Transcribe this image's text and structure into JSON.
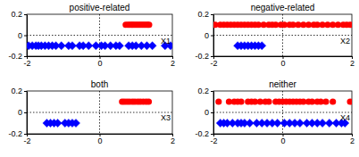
{
  "chart_data": [
    {
      "type": "scatter",
      "title": "positive-related",
      "annotation": "X1",
      "xlim": [
        -2,
        2
      ],
      "ylim": [
        -0.2,
        0.2
      ],
      "xticks": [
        -2,
        0,
        2
      ],
      "yticks": [
        -0.2,
        0,
        0.2
      ],
      "series": [
        {
          "color": "#ff0000",
          "marker": "circle",
          "x": [
            0.72,
            0.78,
            0.83,
            0.88,
            0.92,
            0.97,
            1.02,
            1.07,
            1.12,
            1.17,
            1.22,
            1.27,
            1.32,
            1.36
          ],
          "values": [
            0.1,
            0.1,
            0.1,
            0.1,
            0.1,
            0.1,
            0.1,
            0.1,
            0.1,
            0.1,
            0.1,
            0.1,
            0.1,
            0.1
          ]
        },
        {
          "color": "#0000ff",
          "marker": "diamond",
          "x": [
            -1.95,
            -1.85,
            -1.75,
            -1.68,
            -1.6,
            -1.5,
            -1.4,
            -1.3,
            -1.2,
            -1.05,
            -0.85,
            -0.75,
            -0.55,
            -0.45,
            -0.3,
            -0.1,
            0.05,
            0.15,
            0.3,
            0.45,
            0.55,
            0.8,
            0.9,
            1.0,
            1.15,
            1.3,
            1.45,
            1.8,
            1.95
          ],
          "values": [
            -0.1,
            -0.1,
            -0.1,
            -0.1,
            -0.1,
            -0.1,
            -0.1,
            -0.1,
            -0.1,
            -0.1,
            -0.1,
            -0.1,
            -0.1,
            -0.1,
            -0.1,
            -0.1,
            -0.1,
            -0.1,
            -0.1,
            -0.1,
            -0.1,
            -0.1,
            -0.1,
            -0.1,
            -0.1,
            -0.1,
            -0.1,
            -0.1,
            -0.1
          ]
        }
      ]
    },
    {
      "type": "scatter",
      "title": "negative-related",
      "annotation": "X2",
      "xlim": [
        -2,
        2
      ],
      "ylim": [
        -0.2,
        0.2
      ],
      "xticks": [
        -2,
        0,
        2
      ],
      "yticks": [
        -0.2,
        0,
        0.2
      ],
      "series": [
        {
          "color": "#ff0000",
          "marker": "circle",
          "x": [
            -1.95,
            -1.8,
            -1.7,
            -1.6,
            -1.5,
            -1.4,
            -1.3,
            -1.2,
            -1.1,
            -1.0,
            -0.9,
            -0.8,
            -0.7,
            -0.55,
            -0.4,
            -0.3,
            -0.2,
            -0.05,
            0.05,
            0.2,
            0.3,
            0.45,
            0.6,
            0.75,
            0.9,
            1.0,
            1.15,
            1.3,
            1.45,
            1.6,
            1.75,
            1.85,
            1.95
          ],
          "values": [
            0.1,
            0.1,
            0.1,
            0.1,
            0.1,
            0.1,
            0.1,
            0.1,
            0.1,
            0.1,
            0.1,
            0.1,
            0.1,
            0.1,
            0.1,
            0.1,
            0.1,
            0.1,
            0.1,
            0.1,
            0.1,
            0.1,
            0.1,
            0.1,
            0.1,
            0.1,
            0.1,
            0.1,
            0.1,
            0.1,
            0.1,
            0.1,
            0.1
          ]
        },
        {
          "color": "#0000ff",
          "marker": "diamond",
          "x": [
            -1.3,
            -1.2,
            -1.1,
            -1.0,
            -0.9,
            -0.8,
            -0.7,
            -0.6
          ],
          "values": [
            -0.1,
            -0.1,
            -0.1,
            -0.1,
            -0.1,
            -0.1,
            -0.1,
            -0.1
          ]
        }
      ]
    },
    {
      "type": "scatter",
      "title": "both",
      "annotation": "X3",
      "xlim": [
        -2,
        2
      ],
      "ylim": [
        -0.2,
        0.2
      ],
      "xticks": [
        -2,
        0,
        2
      ],
      "yticks": [
        -0.2,
        0,
        0.2
      ],
      "series": [
        {
          "color": "#ff0000",
          "marker": "circle",
          "x": [
            0.62,
            0.68,
            0.75,
            0.82,
            0.9,
            0.97,
            1.05,
            1.12,
            1.2,
            1.28,
            1.35
          ],
          "values": [
            0.1,
            0.1,
            0.1,
            0.1,
            0.1,
            0.1,
            0.1,
            0.1,
            0.1,
            0.1,
            0.1
          ]
        },
        {
          "color": "#0000ff",
          "marker": "diamond",
          "x": [
            -1.45,
            -1.35,
            -1.25,
            -1.15,
            -0.95,
            -0.85,
            -0.75,
            -0.65
          ],
          "values": [
            -0.1,
            -0.1,
            -0.1,
            -0.1,
            -0.1,
            -0.1,
            -0.1,
            -0.1
          ]
        }
      ]
    },
    {
      "type": "scatter",
      "title": "neither",
      "annotation": "X4",
      "xlim": [
        -2,
        2
      ],
      "ylim": [
        -0.2,
        0.2
      ],
      "xticks": [
        -2,
        0,
        2
      ],
      "yticks": [
        -0.2,
        0,
        0.2
      ],
      "series": [
        {
          "color": "#ff0000",
          "marker": "circle",
          "x": [
            -1.85,
            -1.55,
            -1.4,
            -1.3,
            -1.2,
            -1.0,
            -0.9,
            -0.8,
            -0.65,
            -0.5,
            -0.4,
            -0.2,
            -0.1,
            0,
            0.1,
            0.2,
            0.3,
            0.4,
            0.5,
            0.6,
            0.75,
            0.85,
            1.0,
            1.1,
            1.25,
            1.45,
            1.95
          ],
          "values": [
            0.1,
            0.1,
            0.1,
            0.1,
            0.1,
            0.1,
            0.1,
            0.1,
            0.1,
            0.1,
            0.1,
            0.1,
            0.1,
            0.1,
            0.1,
            0.1,
            0.1,
            0.1,
            0.1,
            0.1,
            0.1,
            0.1,
            0.1,
            0.1,
            0.1,
            0.1,
            0.1
          ]
        },
        {
          "color": "#0000ff",
          "marker": "diamond",
          "x": [
            -1.8,
            -1.7,
            -1.6,
            -1.45,
            -1.3,
            -1.2,
            -1.1,
            -0.95,
            -0.75,
            -0.6,
            -0.45,
            -0.3,
            -0.15,
            0.05,
            0.2,
            0.35,
            0.5,
            0.7,
            0.85,
            1.0,
            1.15,
            1.35,
            1.55,
            1.7,
            1.8
          ],
          "values": [
            -0.1,
            -0.1,
            -0.1,
            -0.1,
            -0.1,
            -0.1,
            -0.1,
            -0.1,
            -0.1,
            -0.1,
            -0.1,
            -0.1,
            -0.1,
            -0.1,
            -0.1,
            -0.1,
            -0.1,
            -0.1,
            -0.1,
            -0.1,
            -0.1,
            -0.1,
            -0.1,
            -0.1,
            -0.1
          ]
        }
      ]
    }
  ]
}
